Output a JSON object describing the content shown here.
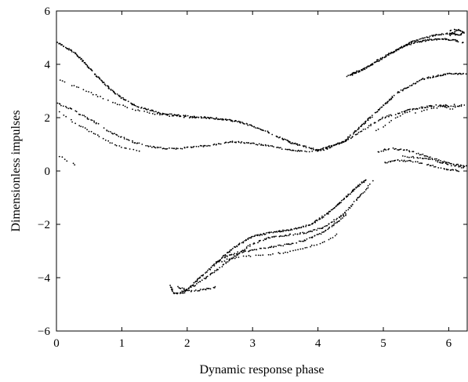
{
  "chart_data": {
    "type": "scatter",
    "title": "",
    "xlabel": "Dynamic response phase",
    "ylabel": "Dimensionless impulses",
    "xlim": [
      0,
      6.283
    ],
    "ylim": [
      -6,
      6
    ],
    "xticks": [
      0,
      1,
      2,
      3,
      4,
      5,
      6
    ],
    "yticks": [
      -6,
      -4,
      -2,
      0,
      2,
      4,
      6
    ],
    "xtick_labels": [
      "0",
      "1",
      "2",
      "3",
      "4",
      "5",
      "6"
    ],
    "ytick_labels": [
      "−6",
      "−4",
      "−2",
      "0",
      "2",
      "4",
      "6"
    ],
    "grid": false,
    "legend": "none",
    "marker_color": "#000000",
    "series": [
      {
        "name": "",
        "structure": "Poincare map points, traced along curve segments",
        "segments": [
          {
            "x": [
              0.0,
              0.3,
              0.6,
              0.9,
              1.2,
              1.6,
              2.0,
              2.4,
              2.8,
              3.2,
              3.6,
              4.0,
              4.4,
              4.8,
              5.2,
              5.6,
              6.0,
              6.283
            ],
            "y": [
              4.85,
              4.4,
              3.6,
              2.9,
              2.45,
              2.15,
              2.05,
              1.98,
              1.85,
              1.5,
              1.05,
              0.78,
              1.1,
              2.0,
              2.9,
              3.45,
              3.65,
              3.65
            ],
            "density": 3
          },
          {
            "x": [
              0.0,
              0.2,
              0.5,
              0.8,
              1.1,
              1.4,
              1.8,
              2.3,
              2.7,
              3.1,
              3.5,
              3.8,
              4.1,
              4.4,
              4.7,
              5.0,
              5.4,
              5.8,
              6.2
            ],
            "y": [
              2.55,
              2.35,
              1.95,
              1.5,
              1.15,
              0.92,
              0.82,
              0.95,
              1.1,
              1.0,
              0.82,
              0.72,
              0.8,
              1.1,
              1.55,
              2.0,
              2.3,
              2.45,
              2.4
            ],
            "density": 2
          },
          {
            "x": [
              0.05,
              0.3,
              0.6,
              0.9,
              1.2,
              1.5,
              1.8,
              2.2
            ],
            "y": [
              3.4,
              3.15,
              2.85,
              2.55,
              2.3,
              2.15,
              2.05,
              2.0
            ],
            "density": 1
          },
          {
            "x": [
              0.05,
              0.25,
              0.5,
              0.75,
              1.0,
              1.3
            ],
            "y": [
              2.2,
              1.85,
              1.5,
              1.15,
              0.9,
              0.75
            ],
            "density": 1
          },
          {
            "x": [
              4.45,
              4.6,
              4.8,
              5.0,
              5.2,
              5.4,
              5.6,
              5.8,
              6.0,
              6.2
            ],
            "y": [
              3.55,
              3.7,
              3.95,
              4.25,
              4.55,
              4.8,
              4.98,
              5.1,
              5.15,
              5.1
            ],
            "density": 3
          },
          {
            "x": [
              4.5,
              4.7,
              4.9,
              5.1,
              5.3,
              5.5,
              5.7,
              5.9,
              6.1,
              6.25
            ],
            "y": [
              3.62,
              3.85,
              4.12,
              4.4,
              4.65,
              4.82,
              4.92,
              4.95,
              4.9,
              4.8
            ],
            "density": 3
          },
          {
            "x": [
              6.0,
              6.08,
              6.16,
              6.22,
              6.16,
              6.08,
              6.02,
              6.1,
              6.2,
              6.26
            ],
            "y": [
              5.05,
              5.22,
              5.3,
              5.2,
              5.1,
              5.15,
              5.28,
              5.32,
              5.25,
              5.15
            ],
            "density": 2
          },
          {
            "x": [
              4.9,
              5.1,
              5.35,
              5.6,
              5.85,
              6.1,
              6.28
            ],
            "y": [
              0.7,
              0.85,
              0.78,
              0.6,
              0.4,
              0.25,
              0.18
            ],
            "density": 2
          },
          {
            "x": [
              5.0,
              5.25,
              5.5,
              5.75,
              6.0,
              6.2
            ],
            "y": [
              0.3,
              0.4,
              0.35,
              0.2,
              0.05,
              0.0
            ],
            "density": 2
          },
          {
            "x": [
              5.3,
              5.55,
              5.8,
              6.05,
              6.25
            ],
            "y": [
              0.55,
              0.5,
              0.38,
              0.22,
              0.12
            ],
            "density": 2
          },
          {
            "x": [
              4.9,
              5.15,
              5.4,
              5.7,
              6.0,
              6.28
            ],
            "y": [
              1.5,
              1.95,
              2.25,
              2.45,
              2.5,
              2.45
            ],
            "density": 1
          },
          {
            "x": [
              5.5,
              5.7,
              5.9,
              6.1
            ],
            "y": [
              2.2,
              2.35,
              2.4,
              2.3
            ],
            "density": 1
          },
          {
            "x": [
              1.75,
              1.8,
              1.95,
              2.15,
              2.4,
              2.7,
              3.0,
              3.3,
              3.6,
              3.9,
              4.15,
              4.4,
              4.6,
              4.75
            ],
            "y": [
              -4.3,
              -4.6,
              -4.55,
              -4.1,
              -3.55,
              -2.9,
              -2.45,
              -2.3,
              -2.2,
              -2.0,
              -1.6,
              -1.05,
              -0.6,
              -0.3
            ],
            "density": 3
          },
          {
            "x": [
              1.9,
              2.1,
              2.35,
              2.65,
              2.95,
              3.25,
              3.55,
              3.85,
              4.1,
              4.35,
              4.55,
              4.7,
              4.85
            ],
            "y": [
              -4.55,
              -4.3,
              -3.9,
              -3.35,
              -2.8,
              -2.5,
              -2.4,
              -2.3,
              -2.1,
              -1.7,
              -1.2,
              -0.8,
              -0.35
            ],
            "density": 2
          },
          {
            "x": [
              2.45,
              2.6,
              2.8,
              3.05,
              3.3,
              3.55,
              3.8,
              4.05,
              4.25,
              4.45
            ],
            "y": [
              -3.4,
              -3.2,
              -3.05,
              -2.95,
              -2.85,
              -2.75,
              -2.6,
              -2.35,
              -2.0,
              -1.6
            ],
            "density": 2
          },
          {
            "x": [
              2.45,
              2.65,
              2.9,
              3.2,
              3.5,
              3.8,
              4.1,
              4.35
            ],
            "y": [
              -3.45,
              -3.3,
              -3.2,
              -3.15,
              -3.05,
              -2.9,
              -2.65,
              -2.3
            ],
            "density": 1
          },
          {
            "x": [
              1.85,
              2.05,
              2.25,
              2.45
            ],
            "y": [
              -4.35,
              -4.5,
              -4.45,
              -4.35
            ],
            "density": 2
          },
          {
            "x": [
              0.02,
              0.12,
              0.22,
              0.32
            ],
            "y": [
              0.6,
              0.45,
              0.3,
              0.2
            ],
            "density": 1
          }
        ]
      }
    ]
  }
}
